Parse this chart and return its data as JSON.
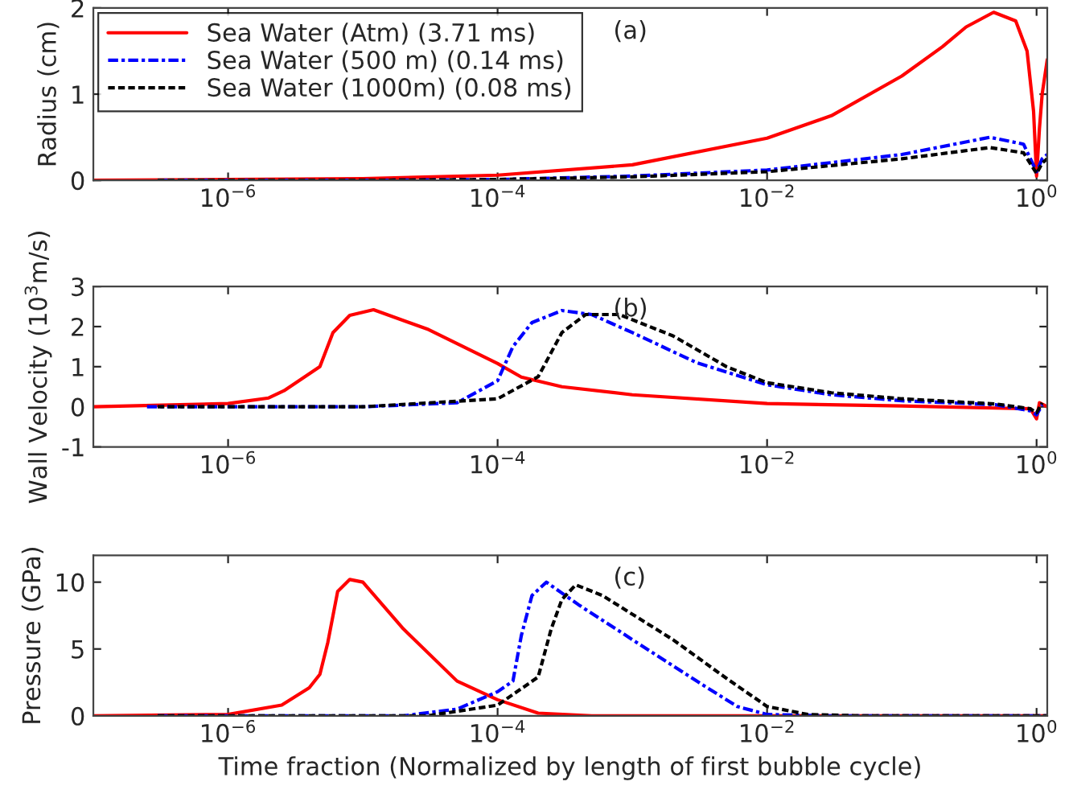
{
  "chart_data": [
    {
      "type": "line",
      "ylabel": "Radius (cm)",
      "annotations": [
        "(a)"
      ],
      "log": "x",
      "xlim": [
        1e-07,
        1.2
      ],
      "xticks": [
        {
          "value": 1e-06,
          "label": "10$^{−6}$"
        },
        {
          "value": 0.0001,
          "label": "10$^{−4}$"
        },
        {
          "value": 0.01,
          "label": "10$^{−2}$"
        },
        {
          "value": 1,
          "label": "10$^{0}$"
        }
      ],
      "ylim": [
        0,
        2
      ],
      "yticks": [
        0,
        1,
        2
      ],
      "legend": "top left",
      "grid": false,
      "series": [
        {
          "name": "Sea Water (Atm) (3.71 ms)",
          "color": "#ff0000",
          "line_style": "solid",
          "x": [
            1e-07,
            1e-06,
            1e-05,
            0.0001,
            0.001,
            0.01,
            0.03,
            0.1,
            0.2,
            0.3,
            0.48,
            0.7,
            0.85,
            0.95,
            1.0,
            1.05,
            1.1,
            1.2
          ],
          "values": [
            0,
            0.01,
            0.02,
            0.06,
            0.18,
            0.49,
            0.75,
            1.21,
            1.55,
            1.78,
            1.95,
            1.85,
            1.5,
            0.8,
            0.05,
            0.6,
            1.0,
            1.4
          ]
        },
        {
          "name": "Sea Water (500 m) (0.14 ms)",
          "color": "#0000ff",
          "line_style": "dashdot",
          "x": [
            3e-07,
            1e-05,
            0.0001,
            0.001,
            0.01,
            0.1,
            0.45,
            0.8,
            1.0,
            1.1,
            1.2
          ],
          "values": [
            0,
            0,
            0.01,
            0.05,
            0.12,
            0.3,
            0.5,
            0.42,
            0.1,
            0.25,
            0.3
          ]
        },
        {
          "name": "Sea Water (1000m) (0.08 ms)",
          "color": "#000000",
          "line_style": "dashed",
          "x": [
            3e-07,
            1e-05,
            0.0001,
            0.001,
            0.01,
            0.1,
            0.45,
            0.8,
            1.0,
            1.1,
            1.2
          ],
          "values": [
            0,
            0,
            0.01,
            0.04,
            0.1,
            0.25,
            0.38,
            0.32,
            0.08,
            0.2,
            0.25
          ]
        }
      ]
    },
    {
      "type": "line",
      "ylabel": "Wall Velocity (10$^{3}$m/s)",
      "annotations": [
        "(b)"
      ],
      "log": "x",
      "xlim": [
        1e-07,
        1.2
      ],
      "xticks": [
        {
          "value": 1e-06,
          "label": "10$^{−6}$"
        },
        {
          "value": 0.0001,
          "label": "10$^{−4}$"
        },
        {
          "value": 0.01,
          "label": "10$^{−2}$"
        },
        {
          "value": 1,
          "label": "10$^{0}$"
        }
      ],
      "ylim": [
        -1,
        3
      ],
      "yticks": [
        -1,
        0,
        1,
        2,
        3
      ],
      "grid": false,
      "series": [
        {
          "color": "#ff0000",
          "line_style": "solid",
          "x": [
            1e-07,
            1e-06,
            2e-06,
            2.6e-06,
            4.8e-06,
            6e-06,
            8e-06,
            1.2e-05,
            3e-05,
            0.0001,
            0.00015,
            0.0003,
            0.001,
            0.01,
            0.1,
            0.9,
            1.0,
            1.05,
            1.2
          ],
          "values": [
            0,
            0.08,
            0.22,
            0.4,
            1.0,
            1.85,
            2.28,
            2.42,
            1.94,
            1.08,
            0.74,
            0.5,
            0.3,
            0.08,
            0.02,
            -0.05,
            -0.3,
            0.1,
            0
          ]
        },
        {
          "color": "#0000ff",
          "line_style": "dashdot",
          "x": [
            2.5e-07,
            1e-05,
            5e-05,
            0.0001,
            0.00013,
            0.00018,
            0.0003,
            0.0005,
            0.001,
            0.003,
            0.01,
            0.03,
            0.1,
            0.5,
            0.9,
            1.0,
            1.1
          ],
          "values": [
            0,
            0,
            0.1,
            0.65,
            1.5,
            2.1,
            2.4,
            2.3,
            1.85,
            1.1,
            0.55,
            0.3,
            0.15,
            0.05,
            -0.1,
            -0.2,
            0.05
          ]
        },
        {
          "color": "#000000",
          "line_style": "dashed",
          "x": [
            3e-07,
            1e-05,
            0.0001,
            0.0002,
            0.0003,
            0.00045,
            0.0008,
            0.002,
            0.005,
            0.01,
            0.03,
            0.1,
            0.5,
            0.9,
            1.0,
            1.1
          ],
          "values": [
            0,
            0,
            0.2,
            0.75,
            1.85,
            2.3,
            2.3,
            1.77,
            1.0,
            0.6,
            0.35,
            0.2,
            0.07,
            -0.05,
            -0.15,
            0.1
          ]
        }
      ]
    },
    {
      "type": "line",
      "ylabel": "Pressure (GPa)",
      "xlabel": "Time fraction (Normalized by length of first bubble cycle)",
      "annotations": [
        "(c)"
      ],
      "log": "x",
      "xlim": [
        1e-07,
        1.2
      ],
      "xticks": [
        {
          "value": 1e-06,
          "label": "10$^{−6}$"
        },
        {
          "value": 0.0001,
          "label": "10$^{−4}$"
        },
        {
          "value": 0.01,
          "label": "10$^{−2}$"
        },
        {
          "value": 1,
          "label": "10$^{0}$"
        }
      ],
      "ylim": [
        0,
        12
      ],
      "yticks": [
        0,
        5,
        10
      ],
      "grid": false,
      "series": [
        {
          "color": "#ff0000",
          "line_style": "solid",
          "x": [
            1e-07,
            1e-06,
            2.5e-06,
            4e-06,
            4.8e-06,
            5.5e-06,
            6.5e-06,
            8e-06,
            1e-05,
            2e-05,
            5e-05,
            0.0001,
            0.0002,
            0.0005,
            1.2
          ],
          "values": [
            0,
            0.1,
            0.8,
            2.1,
            3.1,
            5.5,
            9.3,
            10.2,
            10.0,
            6.5,
            2.6,
            1.2,
            0.2,
            0,
            0
          ]
        },
        {
          "color": "#0000ff",
          "line_style": "dashdot",
          "x": [
            3e-07,
            2e-05,
            5e-05,
            0.0001,
            0.00013,
            0.00015,
            0.00018,
            0.00023,
            0.0004,
            0.001,
            0.003,
            0.006,
            0.01,
            0.03,
            1.2
          ],
          "values": [
            0,
            0,
            0.5,
            1.8,
            2.6,
            6,
            9.0,
            10.0,
            8.3,
            5.7,
            2.6,
            0.7,
            0.1,
            0,
            0
          ]
        },
        {
          "color": "#000000",
          "line_style": "dashed",
          "x": [
            3e-07,
            3e-05,
            0.0001,
            0.0002,
            0.00025,
            0.0003,
            0.00038,
            0.0006,
            0.002,
            0.005,
            0.01,
            0.02,
            0.05,
            1.2
          ],
          "values": [
            0,
            0,
            0.8,
            2.9,
            6.5,
            8.7,
            9.8,
            9.0,
            5.7,
            2.8,
            0.7,
            0.1,
            0,
            0
          ]
        }
      ]
    }
  ]
}
